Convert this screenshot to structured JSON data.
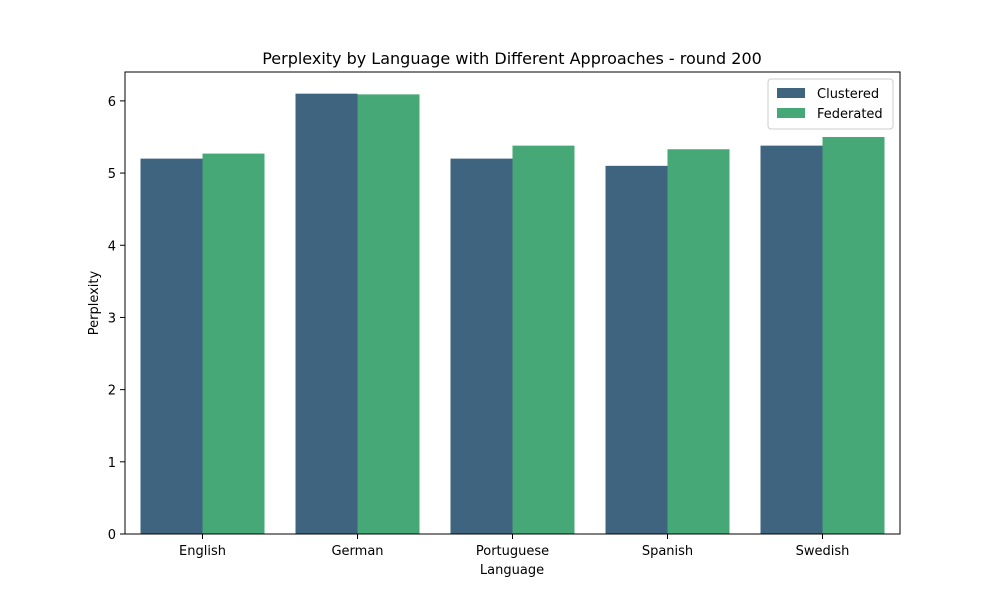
{
  "chart_data": {
    "type": "bar",
    "title": "Perplexity by Language with Different Approaches - round 200",
    "xlabel": "Language",
    "ylabel": "Perplexity",
    "categories": [
      "English",
      "German",
      "Portuguese",
      "Spanish",
      "Swedish"
    ],
    "series": [
      {
        "name": "Clustered",
        "color": "#3e6480",
        "values": [
          5.2,
          6.1,
          5.2,
          5.1,
          5.38
        ]
      },
      {
        "name": "Federated",
        "color": "#46a876",
        "values": [
          5.27,
          6.09,
          5.38,
          5.33,
          5.5
        ]
      }
    ],
    "ylim": [
      0,
      6.4
    ],
    "yticks": [
      0,
      1,
      2,
      3,
      4,
      5,
      6
    ],
    "grid": false,
    "legend_position": "top-right"
  }
}
